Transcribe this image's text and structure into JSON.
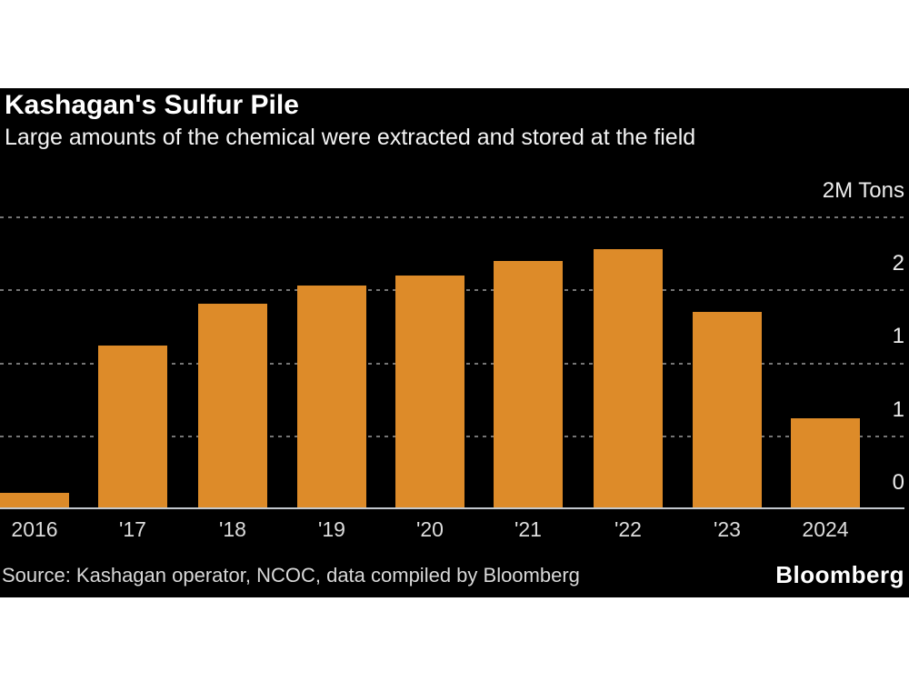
{
  "header": {
    "title": "Kashagan's Sulfur Pile",
    "subtitle": "Large amounts of the chemical were extracted and stored at the field"
  },
  "footer": {
    "source": "Source: Kashagan operator, NCOC, data compiled by Bloomberg",
    "brand": "Bloomberg"
  },
  "axis": {
    "top_unit_label": "2M Tons",
    "ticks": [
      {
        "value": 2.0,
        "label": "2M Tons"
      },
      {
        "value": 1.5,
        "label": "2"
      },
      {
        "value": 1.0,
        "label": "1"
      },
      {
        "value": 0.5,
        "label": "1"
      },
      {
        "value": 0.0,
        "label": "0"
      }
    ]
  },
  "chart_data": {
    "type": "bar",
    "title": "Kashagan's Sulfur Pile",
    "subtitle": "Large amounts of the chemical were extracted and stored at the field",
    "unit": "million tons",
    "categories": [
      "2016",
      "'17",
      "'18",
      "'19",
      "'20",
      "'21",
      "'22",
      "'23",
      "2024"
    ],
    "values": [
      0.11,
      1.12,
      1.41,
      1.53,
      1.6,
      1.7,
      1.78,
      1.35,
      0.62
    ],
    "xlabel": "",
    "ylabel": "2M Tons",
    "ylim": [
      0,
      2.5
    ],
    "gridline_values": [
      0.5,
      1.0,
      1.5,
      2.0
    ],
    "ytick_labels_displayed_bottom_to_top": [
      "0",
      "1",
      "1",
      "2",
      "2M Tons"
    ],
    "grid": "dotted horizontal, behind bars",
    "legend": "none",
    "bar_color": "#DD8B29"
  },
  "colors": {
    "page_background": "#FFFFFF",
    "panel_background": "#000000",
    "bar": "#DD8B29",
    "gridline": "#757575",
    "axis_line": "#C3C8CD",
    "title_text": "#FFFFFF",
    "subtitle_text": "#F4F4F4",
    "tick_text": "#ECECEC",
    "source_text": "#D8D8D8"
  }
}
